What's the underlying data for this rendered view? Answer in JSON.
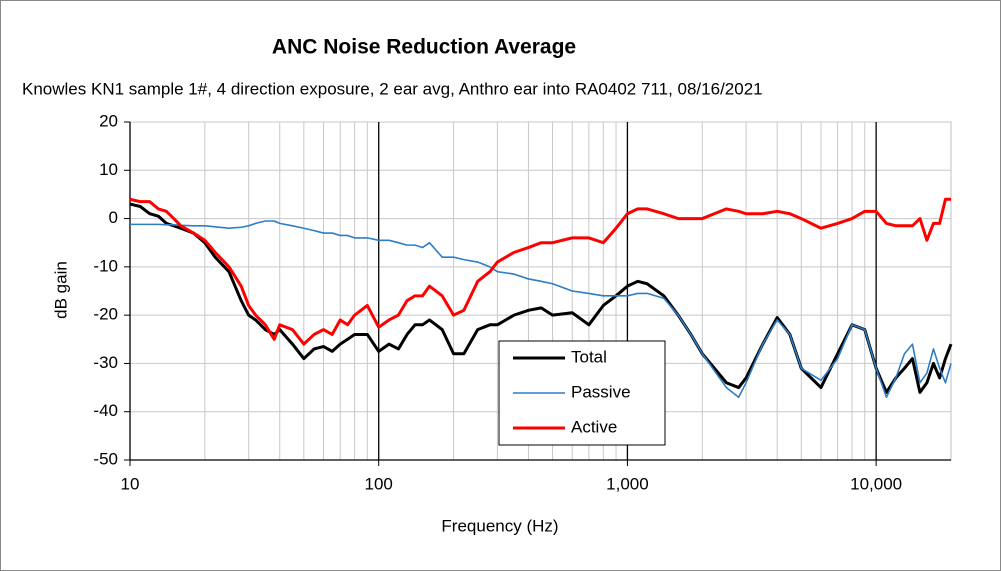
{
  "chart_data": {
    "type": "line",
    "title": "ANC Noise Reduction Average",
    "subtitle": "Knowles KN1 sample 1#, 4 direction exposure, 2 ear avg, Anthro ear into RA0402 711, 08/16/2021",
    "xlabel": "Frequency (Hz)",
    "ylabel": "dB gain",
    "xscale": "log",
    "xlim": [
      10,
      20000
    ],
    "ylim": [
      -50,
      20
    ],
    "xticks": [
      10,
      100,
      {
        "value": 1000,
        "label": "1,000"
      },
      {
        "value": 10000,
        "label": "10,000"
      }
    ],
    "xminorticks": [
      20,
      30,
      40,
      50,
      60,
      70,
      80,
      90,
      200,
      300,
      400,
      500,
      600,
      700,
      800,
      900,
      2000,
      3000,
      4000,
      5000,
      6000,
      7000,
      8000,
      9000
    ],
    "yticks": [
      -50,
      -40,
      -30,
      -20,
      -10,
      0,
      10,
      20
    ],
    "grid": true,
    "legend": "lower center",
    "x": [
      10,
      11,
      12,
      13,
      14,
      15,
      16,
      18,
      20,
      22,
      25,
      28,
      30,
      32,
      35,
      38,
      40,
      45,
      50,
      55,
      60,
      65,
      70,
      75,
      80,
      90,
      100,
      110,
      120,
      130,
      140,
      150,
      160,
      180,
      200,
      220,
      250,
      280,
      300,
      350,
      400,
      450,
      500,
      600,
      700,
      800,
      900,
      1000,
      1100,
      1200,
      1400,
      1600,
      1800,
      2000,
      2500,
      2800,
      3000,
      3500,
      4000,
      4500,
      5000,
      6000,
      7000,
      8000,
      9000,
      10000,
      11000,
      12000,
      13000,
      14000,
      15000,
      16000,
      17000,
      18000,
      19000,
      20000
    ],
    "series": [
      {
        "name": "Total",
        "color": "#000000",
        "width": 3,
        "values": [
          3,
          2.5,
          1,
          0.5,
          -1,
          -1.5,
          -2,
          -3,
          -5,
          -8,
          -11,
          -17,
          -20,
          -21,
          -23,
          -24,
          -23,
          -26,
          -29,
          -27,
          -26.5,
          -27.5,
          -26,
          -25,
          -24,
          -24,
          -27.5,
          -26,
          -27,
          -24,
          -22,
          -22,
          -21,
          -23,
          -28,
          -28,
          -23,
          -22,
          -22,
          -20,
          -19,
          -18.5,
          -20,
          -19.5,
          -22,
          -18,
          -16,
          -14,
          -13,
          -13.5,
          -16,
          -20,
          -24,
          -28,
          -34,
          -35,
          -33,
          -26,
          -20.5,
          -24,
          -31,
          -35,
          -28,
          -22,
          -23,
          -31,
          -36,
          -33,
          -31,
          -29,
          -36,
          -34,
          -30,
          -33,
          -29,
          -26
        ]
      },
      {
        "name": "Passive",
        "color": "#2e7dc8",
        "width": 1.6,
        "values": [
          -1.2,
          -1.2,
          -1.2,
          -1.2,
          -1.3,
          -1.3,
          -1.4,
          -1.5,
          -1.5,
          -1.7,
          -2,
          -1.8,
          -1.5,
          -1,
          -0.5,
          -0.5,
          -1,
          -1.5,
          -2,
          -2.5,
          -3,
          -3,
          -3.5,
          -3.5,
          -4,
          -4,
          -4.5,
          -4.5,
          -5,
          -5.5,
          -5.5,
          -6,
          -5,
          -8,
          -8,
          -8.5,
          -9,
          -10,
          -11,
          -11.5,
          -12.5,
          -13,
          -13.5,
          -15,
          -15.5,
          -16,
          -16,
          -16,
          -15.5,
          -15.5,
          -16.5,
          -20,
          -24,
          -28,
          -35,
          -37,
          -34,
          -26,
          -21,
          -24,
          -31,
          -33.5,
          -29,
          -22,
          -23,
          -31,
          -37,
          -33,
          -28,
          -26,
          -34,
          -32,
          -27,
          -31,
          -34,
          -30
        ]
      },
      {
        "name": "Active",
        "color": "#ff0000",
        "width": 3,
        "values": [
          4,
          3.5,
          3.5,
          2,
          1.5,
          0,
          -1.5,
          -3,
          -4.5,
          -7,
          -10,
          -14,
          -18,
          -20,
          -22,
          -25,
          -22,
          -23,
          -26,
          -24,
          -23,
          -24,
          -21,
          -22,
          -20,
          -18,
          -22.5,
          -21,
          -20,
          -17,
          -16,
          -16,
          -14,
          -16,
          -20,
          -19,
          -13,
          -11,
          -9,
          -7,
          -6,
          -5,
          -5,
          -4,
          -4,
          -5,
          -2,
          1,
          2,
          2,
          1,
          0,
          0,
          0,
          2,
          1.5,
          1,
          1,
          1.5,
          1,
          0,
          -2,
          -1,
          0,
          1.5,
          1.5,
          -1,
          -1.5,
          -1.5,
          -1.5,
          0,
          -4.5,
          -1,
          -1,
          4,
          4
        ]
      }
    ]
  }
}
